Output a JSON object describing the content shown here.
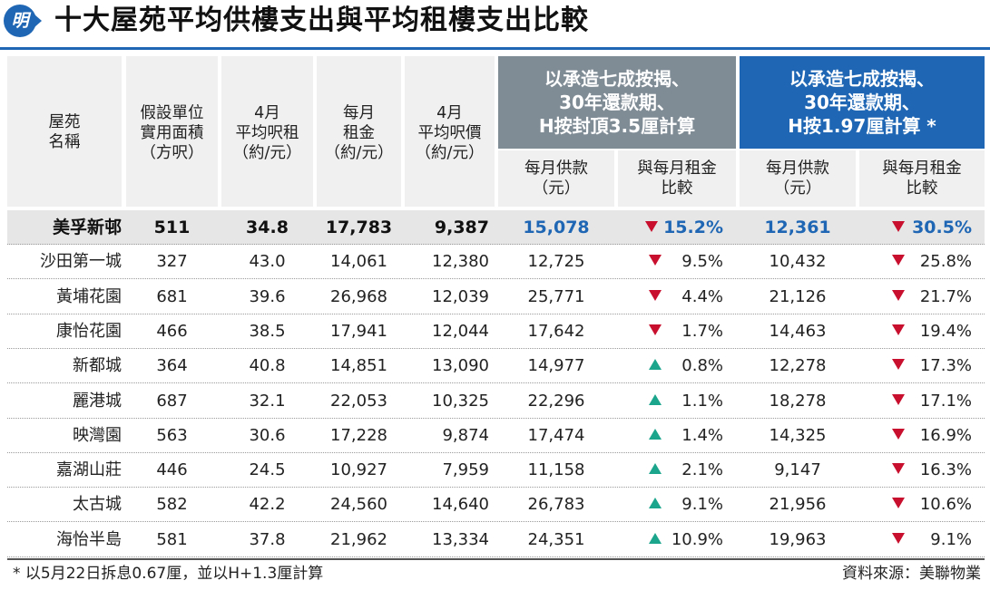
{
  "header": {
    "logo_char": "明",
    "title": "十大屋苑平均供樓支出與平均租樓支出比較"
  },
  "columns": {
    "name": [
      "屋苑",
      "名稱"
    ],
    "area": [
      "假設單位",
      "實用面積",
      "（方呎）"
    ],
    "rent_psf": [
      "4月",
      "平均呎租",
      "（約/元）"
    ],
    "rent": [
      "每月",
      "租金",
      "（約/元）"
    ],
    "price_psf": [
      "4月",
      "平均呎價",
      "（約/元）"
    ]
  },
  "scheme_a": {
    "title": [
      "以承造七成按揭、",
      "30年還款期、",
      "H按封頂3.5厘計算"
    ],
    "payment": [
      "每月供款",
      "（元）"
    ],
    "ratio": [
      "與每月租金",
      "比較"
    ]
  },
  "scheme_b": {
    "title": [
      "以承造七成按揭、",
      "30年還款期、",
      "H按1.97厘計算 *"
    ],
    "payment": [
      "每月供款",
      "（元）"
    ],
    "ratio": [
      "與每月租金",
      "比較"
    ]
  },
  "colors": {
    "scheme_a_banner": "#7f8b95",
    "scheme_b_banner": "#1f67b4",
    "down": "#c8102e",
    "up": "#1aa58c",
    "highlight_text": "#1f67b4"
  },
  "chart_data": {
    "type": "table",
    "title": "十大屋苑平均供樓支出與平均租樓支出比較",
    "rows": [
      {
        "name": "美孚新邨",
        "area": "511",
        "rent_psf": "34.8",
        "rent": "17,783",
        "price_psf": "9,387",
        "pay_a": "15,078",
        "dir_a": "down",
        "pct_a": "15.2%",
        "pay_b": "12,361",
        "dir_b": "down",
        "pct_b": "30.5%",
        "highlight": true
      },
      {
        "name": "沙田第一城",
        "area": "327",
        "rent_psf": "43.0",
        "rent": "14,061",
        "price_psf": "12,380",
        "pay_a": "12,725",
        "dir_a": "down",
        "pct_a": "9.5%",
        "pay_b": "10,432",
        "dir_b": "down",
        "pct_b": "25.8%"
      },
      {
        "name": "黃埔花園",
        "area": "681",
        "rent_psf": "39.6",
        "rent": "26,968",
        "price_psf": "12,039",
        "pay_a": "25,771",
        "dir_a": "down",
        "pct_a": "4.4%",
        "pay_b": "21,126",
        "dir_b": "down",
        "pct_b": "21.7%"
      },
      {
        "name": "康怡花園",
        "area": "466",
        "rent_psf": "38.5",
        "rent": "17,941",
        "price_psf": "12,044",
        "pay_a": "17,642",
        "dir_a": "down",
        "pct_a": "1.7%",
        "pay_b": "14,463",
        "dir_b": "down",
        "pct_b": "19.4%"
      },
      {
        "name": "新都城",
        "area": "364",
        "rent_psf": "40.8",
        "rent": "14,851",
        "price_psf": "13,090",
        "pay_a": "14,977",
        "dir_a": "up",
        "pct_a": "0.8%",
        "pay_b": "12,278",
        "dir_b": "down",
        "pct_b": "17.3%"
      },
      {
        "name": "麗港城",
        "area": "687",
        "rent_psf": "32.1",
        "rent": "22,053",
        "price_psf": "10,325",
        "pay_a": "22,296",
        "dir_a": "up",
        "pct_a": "1.1%",
        "pay_b": "18,278",
        "dir_b": "down",
        "pct_b": "17.1%"
      },
      {
        "name": "映灣園",
        "area": "563",
        "rent_psf": "30.6",
        "rent": "17,228",
        "price_psf": "9,874",
        "pay_a": "17,474",
        "dir_a": "up",
        "pct_a": "1.4%",
        "pay_b": "14,325",
        "dir_b": "down",
        "pct_b": "16.9%"
      },
      {
        "name": "嘉湖山莊",
        "area": "446",
        "rent_psf": "24.5",
        "rent": "10,927",
        "price_psf": "7,959",
        "pay_a": "11,158",
        "dir_a": "up",
        "pct_a": "2.1%",
        "pay_b": "9,147",
        "dir_b": "down",
        "pct_b": "16.3%"
      },
      {
        "name": "太古城",
        "area": "582",
        "rent_psf": "42.2",
        "rent": "24,560",
        "price_psf": "14,640",
        "pay_a": "26,783",
        "dir_a": "up",
        "pct_a": "9.1%",
        "pay_b": "21,956",
        "dir_b": "down",
        "pct_b": "10.6%"
      },
      {
        "name": "海怡半島",
        "area": "581",
        "rent_psf": "37.8",
        "rent": "21,962",
        "price_psf": "13,334",
        "pay_a": "24,351",
        "dir_a": "up",
        "pct_a": "10.9%",
        "pay_b": "19,963",
        "dir_b": "down",
        "pct_b": "9.1%"
      }
    ]
  },
  "footer": {
    "note": "* 以5月22日拆息0.67厘，並以H+1.3厘計算",
    "source": "資料來源：美聯物業"
  }
}
